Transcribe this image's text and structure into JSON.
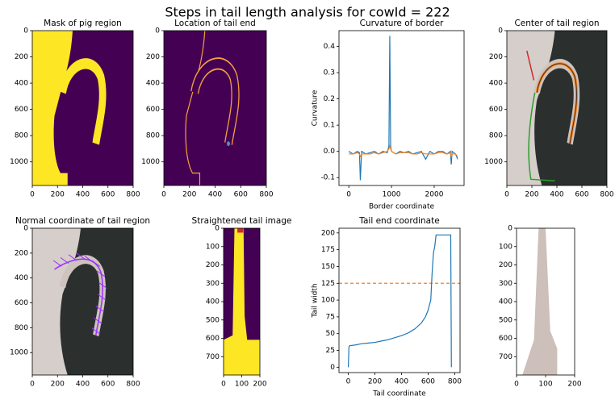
{
  "title": "Steps in tail length analysis for cowId = 222",
  "chart_data": [
    {
      "type": "image",
      "title": "Mask of pig region",
      "xlim": [
        0,
        800
      ],
      "ylim": [
        1180,
        0
      ],
      "xticks": [
        0,
        200,
        400,
        600,
        800
      ],
      "yticks": [
        0,
        200,
        400,
        600,
        800,
        1000
      ]
    },
    {
      "type": "image",
      "title": "Location of tail end",
      "xlim": [
        0,
        800
      ],
      "ylim": [
        1180,
        0
      ],
      "xticks": [
        0,
        200,
        400,
        600,
        800
      ],
      "yticks": [
        0,
        200,
        400,
        600,
        800,
        1000
      ]
    },
    {
      "type": "line",
      "title": "Curvature of border",
      "xlabel": "Border coordinate",
      "ylabel": "Curvature",
      "x": [
        0,
        100,
        200,
        250,
        270,
        300,
        400,
        500,
        600,
        700,
        800,
        900,
        940,
        960,
        980,
        1000,
        1100,
        1200,
        1300,
        1400,
        1500,
        1600,
        1700,
        1800,
        1900,
        2000,
        2100,
        2200,
        2300,
        2380,
        2400,
        2420,
        2500,
        2550
      ],
      "series": [
        {
          "color": "#1f77b4",
          "values": [
            0,
            -0.01,
            0,
            -0.005,
            -0.11,
            0,
            -0.01,
            -0.005,
            0,
            -0.01,
            0,
            -0.005,
            0.02,
            0.44,
            0.02,
            0,
            -0.01,
            0,
            -0.005,
            0,
            -0.01,
            -0.005,
            0,
            -0.03,
            0,
            -0.01,
            0,
            0,
            -0.01,
            0,
            -0.05,
            0,
            -0.01,
            -0.03
          ]
        },
        {
          "color": "#ff7f0e",
          "values": [
            -0.01,
            -0.01,
            -0.005,
            -0.01,
            -0.02,
            -0.01,
            -0.01,
            -0.01,
            -0.005,
            -0.01,
            -0.005,
            0,
            0.01,
            0.02,
            0.01,
            0,
            -0.01,
            -0.005,
            -0.005,
            -0.005,
            -0.01,
            -0.01,
            -0.005,
            -0.01,
            -0.01,
            -0.01,
            -0.005,
            -0.005,
            -0.01,
            -0.005,
            -0.02,
            -0.01,
            -0.01,
            -0.02
          ]
        }
      ],
      "xlim": [
        -230,
        2700
      ],
      "ylim": [
        -0.13,
        0.46
      ],
      "xticks": [
        0,
        1000,
        2000
      ],
      "yticks": [
        -0.1,
        {
          "value": 0,
          "label": "0.0"
        },
        0.1,
        0.2,
        0.3,
        0.4
      ]
    },
    {
      "type": "image",
      "title": "Center of tail region",
      "xlim": [
        0,
        800
      ],
      "ylim": [
        1180,
        0
      ],
      "xticks": [
        0,
        200,
        400,
        600,
        800
      ],
      "yticks": [
        0,
        200,
        400,
        600,
        800,
        1000
      ]
    },
    {
      "type": "image",
      "title": "Normal coordinate of tail region",
      "xlim": [
        0,
        800
      ],
      "ylim": [
        1180,
        0
      ],
      "xticks": [
        0,
        200,
        400,
        600,
        800
      ],
      "yticks": [
        0,
        200,
        400,
        600,
        800,
        1000
      ]
    },
    {
      "type": "image",
      "title": "Straightened tail image",
      "xlim": [
        0,
        200
      ],
      "ylim": [
        800,
        0
      ],
      "xticks": [
        0,
        100,
        200
      ],
      "yticks": [
        0,
        100,
        200,
        300,
        400,
        500,
        600,
        700
      ]
    },
    {
      "type": "line",
      "title": "Tail end coordinate",
      "xlabel": "Tail coordinate",
      "ylabel": "Tail width",
      "x": [
        0,
        5,
        10,
        50,
        100,
        150,
        200,
        250,
        300,
        350,
        400,
        450,
        500,
        550,
        580,
        600,
        620,
        630,
        640,
        650,
        660,
        700,
        760,
        770,
        775
      ],
      "series": [
        {
          "color": "#1f77b4",
          "values": [
            0,
            30,
            32,
            33,
            35,
            36,
            37,
            39,
            41,
            44,
            47,
            51,
            57,
            66,
            75,
            85,
            100,
            140,
            170,
            180,
            197,
            197,
            197,
            197,
            0
          ]
        }
      ],
      "reference_line": {
        "value": 125,
        "color": "#ff7f0e",
        "style": "dashed"
      },
      "xlim": [
        -70,
        840
      ],
      "ylim": [
        -8,
        207
      ],
      "xticks": [
        0,
        200,
        400,
        600,
        800
      ],
      "yticks": [
        0,
        25,
        50,
        75,
        100,
        125,
        150,
        175,
        200
      ]
    },
    {
      "type": "image",
      "xlim": [
        0,
        200
      ],
      "ylim": [
        800,
        0
      ],
      "xticks": [
        0,
        100,
        200
      ],
      "yticks": [
        0,
        100,
        200,
        300,
        400,
        500,
        600,
        700
      ]
    }
  ]
}
